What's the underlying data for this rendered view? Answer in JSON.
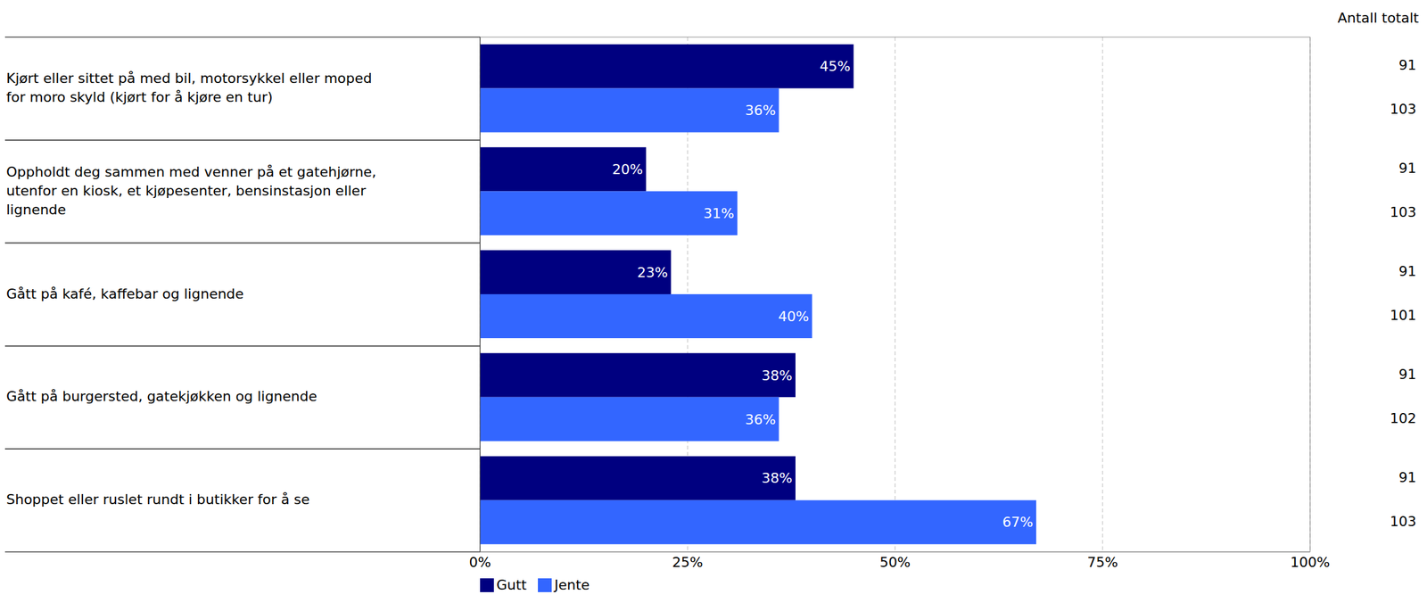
{
  "chart_data": {
    "type": "bar",
    "orientation": "horizontal",
    "data_labels": true,
    "grid": true,
    "legend": "bottom",
    "categories": [
      "Kjørt eller sittet på med bil, motorsykkel eller moped for moro skyld (kjørt for å kjøre en tur)",
      "Oppholdt deg sammen med venner på et gatehjørne, utenfor en kiosk, et kjøpesenter, bensinstasjon eller lignende",
      "Gått på kafé, kaffebar og lignende",
      "Gått på burgersted, gatekjøkken og lignende",
      "Shoppet eller ruslet rundt i butikker for å se"
    ],
    "series": [
      {
        "name": "Gutt",
        "color": "#000080",
        "values": [
          45,
          20,
          23,
          38,
          38
        ],
        "value_labels": [
          "45%",
          "20%",
          "23%",
          "38%",
          "38%"
        ],
        "counts": [
          91,
          91,
          91,
          91,
          91
        ]
      },
      {
        "name": "Jente",
        "color": "#3366ff",
        "values": [
          36,
          31,
          40,
          36,
          67
        ],
        "value_labels": [
          "36%",
          "31%",
          "40%",
          "36%",
          "67%"
        ],
        "counts": [
          103,
          103,
          101,
          102,
          103
        ]
      }
    ],
    "counts_label": "Antall totalt",
    "xlim": [
      0,
      100
    ],
    "xticks": [
      {
        "value": 0,
        "label": "0%"
      },
      {
        "value": 25,
        "label": "25%"
      },
      {
        "value": 50,
        "label": "50%"
      },
      {
        "value": 75,
        "label": "75%"
      },
      {
        "value": 100,
        "label": "100%"
      }
    ]
  }
}
